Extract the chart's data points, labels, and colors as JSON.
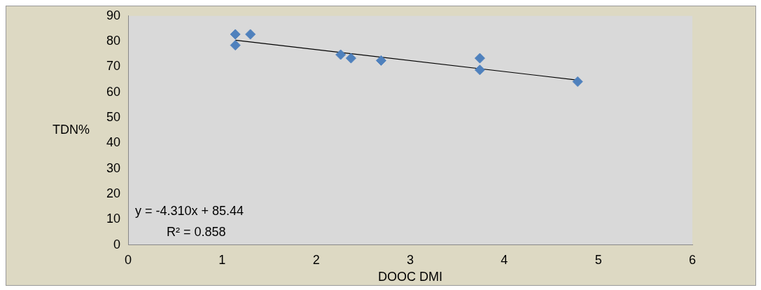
{
  "chart_data": {
    "type": "scatter",
    "xlabel": "DOOC DMI",
    "ylabel": "TDN%",
    "xlim": [
      0,
      6
    ],
    "xticks": [
      0,
      1,
      2,
      3,
      4,
      5,
      6
    ],
    "ylim": [
      0,
      90
    ],
    "yticks": [
      0,
      10,
      20,
      30,
      40,
      50,
      60,
      70,
      80,
      90
    ],
    "grid": false,
    "legend": false,
    "marker": "diamond",
    "series": [
      {
        "type": "scatter",
        "color": "#4f81bd",
        "x": [
          1.14,
          1.14,
          1.3,
          2.26,
          2.37,
          2.69,
          3.74,
          3.74,
          4.78
        ],
        "values": [
          82.8,
          78.5,
          82.8,
          74.8,
          73.4,
          72.5,
          73.4,
          68.8,
          64.2
        ]
      },
      {
        "type": "line",
        "color": "#000000",
        "line_style": "solid",
        "marker": "none",
        "x": [
          1.14,
          4.78
        ],
        "values": [
          80.5,
          64.8
        ]
      }
    ],
    "annotations": [
      "y = -4.310x + 85.44",
      "R² = 0.858"
    ]
  }
}
